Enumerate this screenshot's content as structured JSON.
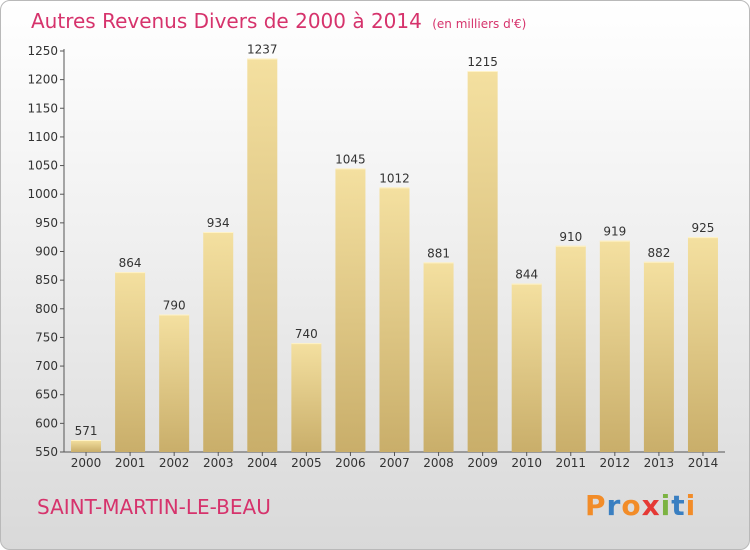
{
  "header": {
    "title": "Autres Revenus Divers de 2000 à 2014",
    "unit": "(en milliers d'€)"
  },
  "footer": {
    "location": "SAINT-MARTIN-LE-BEAU",
    "brand": "Proxiti"
  },
  "colors": {
    "title": "#d6336c",
    "bar_light": "#f4e0a0",
    "bar_dark": "#c9ae6a",
    "brand": [
      "#f28c28",
      "#3a7fc1",
      "#f28c28",
      "#e53935",
      "#7cb342",
      "#3a7fc1",
      "#f28c28"
    ]
  },
  "chart_data": {
    "type": "bar",
    "title": "Autres Revenus Divers de 2000 à 2014",
    "subtitle": "(en milliers d'€)",
    "categories": [
      "2000",
      "2001",
      "2002",
      "2003",
      "2004",
      "2005",
      "2006",
      "2007",
      "2008",
      "2009",
      "2010",
      "2011",
      "2012",
      "2013",
      "2014"
    ],
    "values": [
      571,
      864,
      790,
      934,
      1237,
      740,
      1045,
      1012,
      881,
      1215,
      844,
      910,
      919,
      882,
      925
    ],
    "ylim": [
      550,
      1250
    ],
    "yticks": [
      550,
      600,
      650,
      700,
      750,
      800,
      850,
      900,
      950,
      1000,
      1050,
      1100,
      1150,
      1200,
      1250
    ],
    "grid": false,
    "data_labels": true
  }
}
